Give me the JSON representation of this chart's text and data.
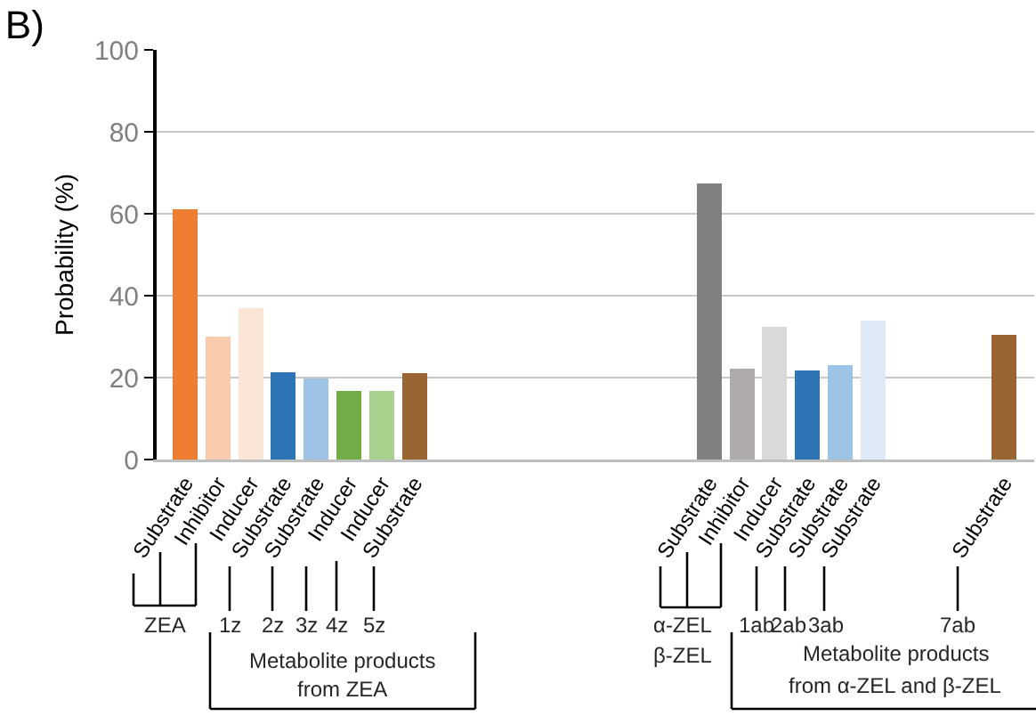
{
  "chart_data": {
    "type": "bar",
    "title": "B)",
    "ylabel": "Probability (%)",
    "categories": [
      "Substrate",
      "Inhibitor",
      "Inducer",
      "Substrate",
      "Substrate",
      "Inducer",
      "Inducer",
      "Substrate",
      null,
      null,
      null,
      null,
      null,
      null,
      null,
      null,
      "Substrate",
      "Inhibitor",
      "Inducer",
      "Substrate",
      "Substrate",
      "Substrate",
      null,
      null,
      null,
      "Substrate"
    ],
    "values": [
      61,
      30,
      37,
      21.4,
      19.8,
      16.7,
      16.7,
      21,
      null,
      null,
      null,
      null,
      null,
      null,
      null,
      null,
      67.4,
      22.2,
      32.3,
      21.7,
      23,
      33.9,
      null,
      null,
      null,
      30.4
    ],
    "colors": [
      "#ed7d31",
      "#f8cbad",
      "#fbe5d6",
      "#2e75b6",
      "#9dc3e6",
      "#70ad47",
      "#a9d18e",
      "#996633",
      null,
      null,
      null,
      null,
      null,
      null,
      null,
      null,
      "#808080",
      "#afabab",
      "#d9d9d9",
      "#2e75b6",
      "#9dc3e6",
      "#deebf7",
      null,
      null,
      null,
      "#996633"
    ],
    "ylim": [
      0,
      100
    ],
    "yticks": [
      0,
      20,
      40,
      60,
      80,
      100
    ],
    "grid": "y",
    "annotations": [
      "ZEA",
      "1z",
      "2z",
      "3z",
      "4z",
      "5z",
      "Metabolite products",
      "from ZEA",
      "α-ZEL",
      "β-ZEL",
      "1ab",
      "2ab",
      "3ab",
      "7ab",
      "Metabolite products",
      "from α-ZEL and β-ZEL"
    ]
  }
}
